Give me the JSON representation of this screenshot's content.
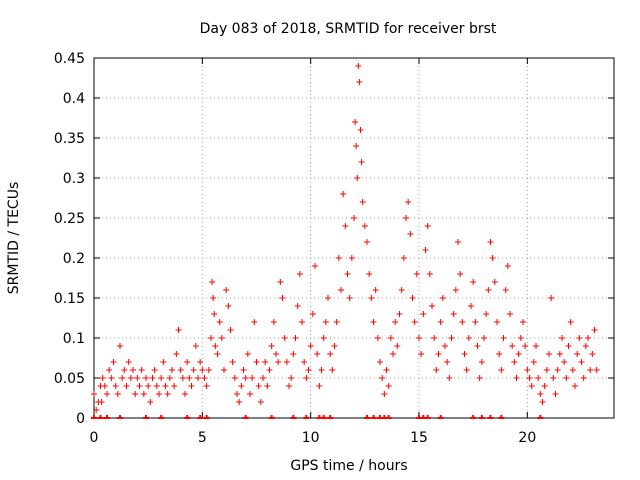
{
  "chart_data": {
    "type": "scatter",
    "title": "Day 083 of 2018, SRMTID for receiver brst",
    "xlabel": "GPS time / hours",
    "ylabel": "SRMTID / TECUs",
    "xlim": [
      0,
      24
    ],
    "ylim": [
      0,
      0.45
    ],
    "x_ticks": [
      0,
      5,
      10,
      15,
      20
    ],
    "x_tick_labels": [
      "0",
      "5",
      "10",
      "15",
      "20"
    ],
    "y_ticks": [
      0,
      0.05,
      0.1,
      0.15,
      0.2,
      0.25,
      0.3,
      0.35,
      0.4,
      0.45
    ],
    "y_tick_labels": [
      "0",
      "0.05",
      "0.1",
      "0.15",
      "0.2",
      "0.25",
      "0.3",
      "0.35",
      "0.4",
      "0.45"
    ],
    "grid": true,
    "marker": "+",
    "color": "#ff0000",
    "series": [
      {
        "name": "SRMTID",
        "points": [
          [
            0.0,
            0.03
          ],
          [
            0.1,
            0.01
          ],
          [
            0.2,
            0.02
          ],
          [
            0.3,
            0.04
          ],
          [
            0.35,
            0.02
          ],
          [
            0.4,
            0.05
          ],
          [
            0.5,
            0.04
          ],
          [
            0.6,
            0.03
          ],
          [
            0.7,
            0.06
          ],
          [
            0.8,
            0.05
          ],
          [
            0.9,
            0.07
          ],
          [
            1.0,
            0.04
          ],
          [
            1.1,
            0.03
          ],
          [
            1.2,
            0.09
          ],
          [
            1.3,
            0.05
          ],
          [
            1.4,
            0.06
          ],
          [
            1.5,
            0.04
          ],
          [
            1.6,
            0.07
          ],
          [
            1.7,
            0.05
          ],
          [
            1.8,
            0.06
          ],
          [
            1.9,
            0.03
          ],
          [
            2.0,
            0.05
          ],
          [
            2.1,
            0.04
          ],
          [
            2.2,
            0.06
          ],
          [
            2.3,
            0.03
          ],
          [
            2.4,
            0.05
          ],
          [
            2.5,
            0.04
          ],
          [
            2.6,
            0.02
          ],
          [
            2.7,
            0.05
          ],
          [
            2.8,
            0.06
          ],
          [
            2.9,
            0.04
          ],
          [
            3.0,
            0.03
          ],
          [
            3.1,
            0.05
          ],
          [
            3.2,
            0.07
          ],
          [
            3.3,
            0.04
          ],
          [
            3.4,
            0.03
          ],
          [
            3.5,
            0.05
          ],
          [
            3.6,
            0.06
          ],
          [
            3.7,
            0.04
          ],
          [
            3.8,
            0.08
          ],
          [
            3.9,
            0.11
          ],
          [
            4.0,
            0.06
          ],
          [
            4.1,
            0.05
          ],
          [
            4.2,
            0.03
          ],
          [
            4.3,
            0.07
          ],
          [
            4.4,
            0.05
          ],
          [
            4.5,
            0.04
          ],
          [
            4.6,
            0.06
          ],
          [
            4.7,
            0.09
          ],
          [
            4.8,
            0.05
          ],
          [
            4.9,
            0.07
          ],
          [
            5.0,
            0.06
          ],
          [
            5.1,
            0.05
          ],
          [
            5.2,
            0.04
          ],
          [
            5.3,
            0.06
          ],
          [
            5.4,
            0.1
          ],
          [
            5.45,
            0.17
          ],
          [
            5.5,
            0.15
          ],
          [
            5.55,
            0.13
          ],
          [
            5.6,
            0.09
          ],
          [
            5.7,
            0.08
          ],
          [
            5.8,
            0.12
          ],
          [
            5.9,
            0.1
          ],
          [
            6.0,
            0.06
          ],
          [
            6.1,
            0.16
          ],
          [
            6.2,
            0.14
          ],
          [
            6.3,
            0.11
          ],
          [
            6.4,
            0.07
          ],
          [
            6.5,
            0.05
          ],
          [
            6.6,
            0.03
          ],
          [
            6.7,
            0.02
          ],
          [
            6.8,
            0.04
          ],
          [
            6.9,
            0.06
          ],
          [
            7.0,
            0.05
          ],
          [
            7.1,
            0.08
          ],
          [
            7.2,
            0.03
          ],
          [
            7.3,
            0.05
          ],
          [
            7.4,
            0.12
          ],
          [
            7.5,
            0.07
          ],
          [
            7.6,
            0.04
          ],
          [
            7.7,
            0.02
          ],
          [
            7.8,
            0.05
          ],
          [
            7.9,
            0.07
          ],
          [
            8.0,
            0.04
          ],
          [
            8.1,
            0.06
          ],
          [
            8.2,
            0.09
          ],
          [
            8.3,
            0.12
          ],
          [
            8.4,
            0.08
          ],
          [
            8.5,
            0.07
          ],
          [
            8.6,
            0.17
          ],
          [
            8.7,
            0.15
          ],
          [
            8.8,
            0.1
          ],
          [
            8.9,
            0.07
          ],
          [
            9.0,
            0.04
          ],
          [
            9.1,
            0.05
          ],
          [
            9.2,
            0.08
          ],
          [
            9.3,
            0.1
          ],
          [
            9.4,
            0.14
          ],
          [
            9.5,
            0.18
          ],
          [
            9.6,
            0.12
          ],
          [
            9.7,
            0.07
          ],
          [
            9.8,
            0.05
          ],
          [
            9.9,
            0.06
          ],
          [
            10.0,
            0.09
          ],
          [
            10.1,
            0.13
          ],
          [
            10.2,
            0.19
          ],
          [
            10.3,
            0.08
          ],
          [
            10.4,
            0.04
          ],
          [
            10.5,
            0.06
          ],
          [
            10.6,
            0.1
          ],
          [
            10.7,
            0.12
          ],
          [
            10.8,
            0.15
          ],
          [
            10.9,
            0.08
          ],
          [
            11.0,
            0.06
          ],
          [
            11.1,
            0.09
          ],
          [
            11.2,
            0.12
          ],
          [
            11.3,
            0.2
          ],
          [
            11.4,
            0.16
          ],
          [
            11.5,
            0.28
          ],
          [
            11.6,
            0.24
          ],
          [
            11.7,
            0.18
          ],
          [
            11.8,
            0.15
          ],
          [
            11.9,
            0.2
          ],
          [
            12.0,
            0.25
          ],
          [
            12.05,
            0.37
          ],
          [
            12.1,
            0.34
          ],
          [
            12.15,
            0.3
          ],
          [
            12.2,
            0.44
          ],
          [
            12.25,
            0.42
          ],
          [
            12.3,
            0.36
          ],
          [
            12.35,
            0.32
          ],
          [
            12.4,
            0.27
          ],
          [
            12.5,
            0.24
          ],
          [
            12.6,
            0.22
          ],
          [
            12.7,
            0.18
          ],
          [
            12.8,
            0.15
          ],
          [
            12.9,
            0.12
          ],
          [
            13.0,
            0.16
          ],
          [
            13.1,
            0.1
          ],
          [
            13.2,
            0.07
          ],
          [
            13.3,
            0.05
          ],
          [
            13.4,
            0.03
          ],
          [
            13.5,
            0.06
          ],
          [
            13.6,
            0.04
          ],
          [
            13.7,
            0.1
          ],
          [
            13.8,
            0.08
          ],
          [
            13.9,
            0.12
          ],
          [
            14.0,
            0.09
          ],
          [
            14.1,
            0.13
          ],
          [
            14.2,
            0.16
          ],
          [
            14.3,
            0.2
          ],
          [
            14.4,
            0.25
          ],
          [
            14.5,
            0.27
          ],
          [
            14.6,
            0.23
          ],
          [
            14.7,
            0.15
          ],
          [
            14.8,
            0.12
          ],
          [
            14.9,
            0.18
          ],
          [
            15.0,
            0.1
          ],
          [
            15.1,
            0.08
          ],
          [
            15.2,
            0.13
          ],
          [
            15.3,
            0.21
          ],
          [
            15.4,
            0.24
          ],
          [
            15.5,
            0.18
          ],
          [
            15.6,
            0.14
          ],
          [
            15.7,
            0.1
          ],
          [
            15.8,
            0.06
          ],
          [
            15.9,
            0.08
          ],
          [
            16.0,
            0.12
          ],
          [
            16.1,
            0.15
          ],
          [
            16.2,
            0.09
          ],
          [
            16.3,
            0.07
          ],
          [
            16.4,
            0.05
          ],
          [
            16.5,
            0.1
          ],
          [
            16.6,
            0.13
          ],
          [
            16.7,
            0.16
          ],
          [
            16.8,
            0.22
          ],
          [
            16.9,
            0.18
          ],
          [
            17.0,
            0.12
          ],
          [
            17.1,
            0.08
          ],
          [
            17.2,
            0.06
          ],
          [
            17.3,
            0.1
          ],
          [
            17.4,
            0.14
          ],
          [
            17.5,
            0.17
          ],
          [
            17.6,
            0.12
          ],
          [
            17.7,
            0.09
          ],
          [
            17.8,
            0.05
          ],
          [
            17.9,
            0.07
          ],
          [
            18.0,
            0.1
          ],
          [
            18.1,
            0.13
          ],
          [
            18.2,
            0.16
          ],
          [
            18.3,
            0.22
          ],
          [
            18.4,
            0.2
          ],
          [
            18.5,
            0.17
          ],
          [
            18.6,
            0.12
          ],
          [
            18.7,
            0.08
          ],
          [
            18.8,
            0.06
          ],
          [
            18.9,
            0.1
          ],
          [
            19.0,
            0.16
          ],
          [
            19.1,
            0.19
          ],
          [
            19.2,
            0.13
          ],
          [
            19.3,
            0.09
          ],
          [
            19.4,
            0.07
          ],
          [
            19.5,
            0.05
          ],
          [
            19.6,
            0.08
          ],
          [
            19.7,
            0.1
          ],
          [
            19.8,
            0.12
          ],
          [
            19.9,
            0.09
          ],
          [
            20.0,
            0.06
          ],
          [
            20.1,
            0.05
          ],
          [
            20.2,
            0.04
          ],
          [
            20.3,
            0.07
          ],
          [
            20.4,
            0.09
          ],
          [
            20.5,
            0.05
          ],
          [
            20.6,
            0.03
          ],
          [
            20.7,
            0.02
          ],
          [
            20.8,
            0.04
          ],
          [
            20.9,
            0.06
          ],
          [
            21.0,
            0.08
          ],
          [
            21.1,
            0.15
          ],
          [
            21.2,
            0.05
          ],
          [
            21.3,
            0.03
          ],
          [
            21.4,
            0.06
          ],
          [
            21.5,
            0.08
          ],
          [
            21.6,
            0.1
          ],
          [
            21.7,
            0.07
          ],
          [
            21.8,
            0.05
          ],
          [
            21.9,
            0.09
          ],
          [
            22.0,
            0.12
          ],
          [
            22.1,
            0.06
          ],
          [
            22.2,
            0.04
          ],
          [
            22.3,
            0.08
          ],
          [
            22.4,
            0.1
          ],
          [
            22.5,
            0.07
          ],
          [
            22.6,
            0.05
          ],
          [
            22.7,
            0.09
          ],
          [
            22.8,
            0.1
          ],
          [
            22.9,
            0.06
          ],
          [
            23.0,
            0.08
          ],
          [
            23.1,
            0.11
          ],
          [
            23.2,
            0.06
          ]
        ],
        "zero_markers": [
          0.0,
          0.3,
          0.6,
          1.2,
          2.4,
          3.1,
          4.3,
          4.9,
          5.2,
          7.0,
          8.2,
          9.2,
          9.8,
          10.4,
          10.6,
          10.9,
          12.6,
          12.9,
          13.2,
          13.4,
          13.6,
          15.0,
          15.2,
          15.4,
          16.0,
          17.5,
          17.9,
          18.3,
          18.8,
          20.6
        ]
      }
    ]
  }
}
